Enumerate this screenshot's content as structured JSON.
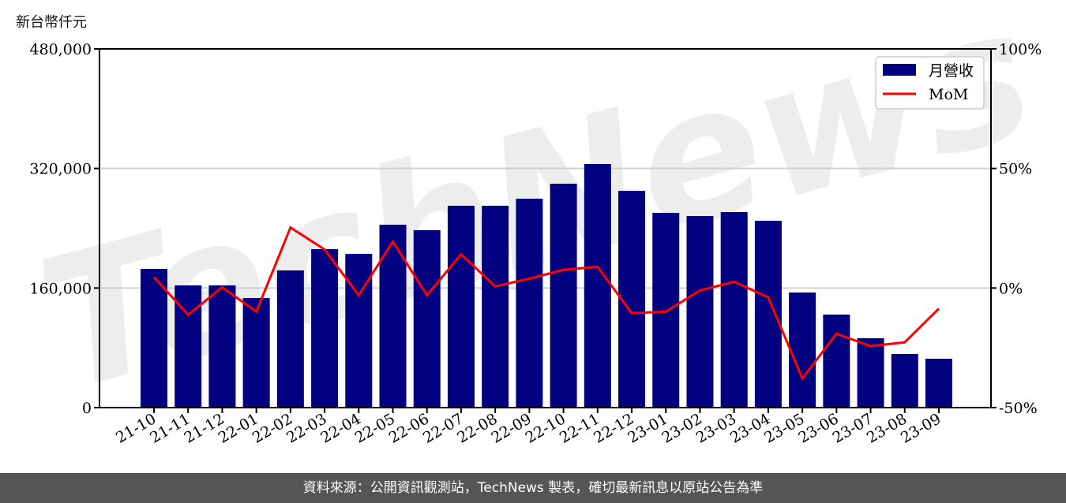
{
  "chart_data": {
    "type": "bar+line",
    "y_left_unit": "新台幣仟元",
    "categories": [
      "21-10",
      "21-11",
      "21-12",
      "22-01",
      "22-02",
      "22-03",
      "22-04",
      "22-05",
      "22-06",
      "22-07",
      "22-08",
      "22-09",
      "22-10",
      "22-11",
      "22-12",
      "23-01",
      "23-02",
      "23-03",
      "23-04",
      "23-05",
      "23-06",
      "23-07",
      "23-08",
      "23-09"
    ],
    "series": [
      {
        "name": "月營收",
        "type": "bar",
        "axis": "left",
        "color": "#000080",
        "values": [
          185700,
          163500,
          163500,
          146600,
          183600,
          212000,
          205700,
          244700,
          237400,
          270100,
          270100,
          279500,
          299600,
          326000,
          290100,
          260600,
          256300,
          261600,
          250000,
          154000,
          124500,
          92800,
          71700,
          65400
        ]
      },
      {
        "name": "MoM",
        "type": "line",
        "axis": "right",
        "color": "#ff0000",
        "values": [
          4.6,
          -11.2,
          0.3,
          -9.9,
          25.3,
          16.1,
          -3.0,
          19.4,
          -3.0,
          14.1,
          0.7,
          3.9,
          7.6,
          8.9,
          -10.5,
          -9.9,
          -1.0,
          2.6,
          -3.9,
          -37.8,
          -19.1,
          -24.3,
          -22.7,
          -8.6
        ]
      }
    ],
    "y_left": {
      "lim": [
        0,
        480000
      ],
      "ticks": [
        0,
        160000,
        320000,
        480000
      ],
      "tick_labels": [
        "0",
        "160,000",
        "320,000",
        "480,000"
      ]
    },
    "y_right": {
      "lim": [
        -50,
        100
      ],
      "ticks": [
        -50,
        0,
        50,
        100
      ],
      "tick_labels": [
        "-50%",
        "0%",
        "50%",
        "100%"
      ]
    },
    "grid": "horizontal",
    "legend": "top-right"
  },
  "watermark": "TechNews",
  "footer": "資料來源：公開資訊觀測站，TechNews 製表，確切最新訊息以原站公告為準"
}
